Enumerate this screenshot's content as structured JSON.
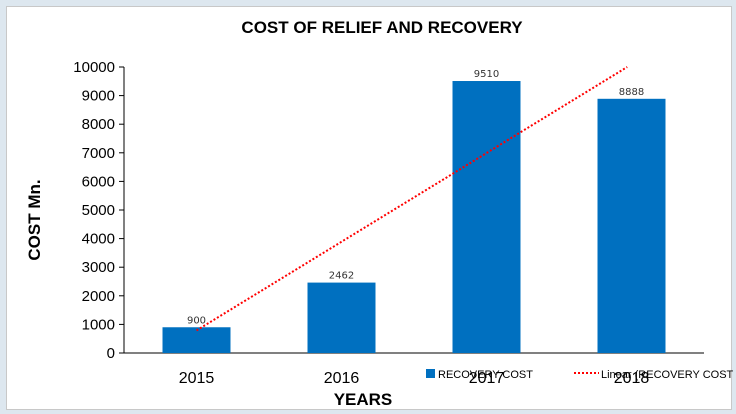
{
  "chart_data": {
    "type": "bar",
    "title": "COST OF RELIEF AND RECOVERY",
    "xlabel": "YEARS",
    "ylabel": "COST Mn.",
    "categories": [
      "2015",
      "2016",
      "2017",
      "2018"
    ],
    "series": [
      {
        "name": "RECOVERY COST",
        "values": [
          900,
          2462,
          9510,
          8888
        ],
        "color": "#0070c0"
      }
    ],
    "trendline": {
      "name": "Linear (RECOVERY COST)",
      "color": "#ff0000",
      "style": "dotted",
      "type": "linear"
    },
    "ylim": [
      0,
      10000
    ],
    "yticks": [
      "0",
      "1000",
      "2000",
      "3000",
      "4000",
      "5000",
      "6000",
      "7000",
      "8000",
      "9000",
      "10000"
    ],
    "grid": false,
    "legend_position": "bottom-right",
    "data_labels": [
      "900",
      "2462",
      "9510",
      "8888"
    ]
  }
}
